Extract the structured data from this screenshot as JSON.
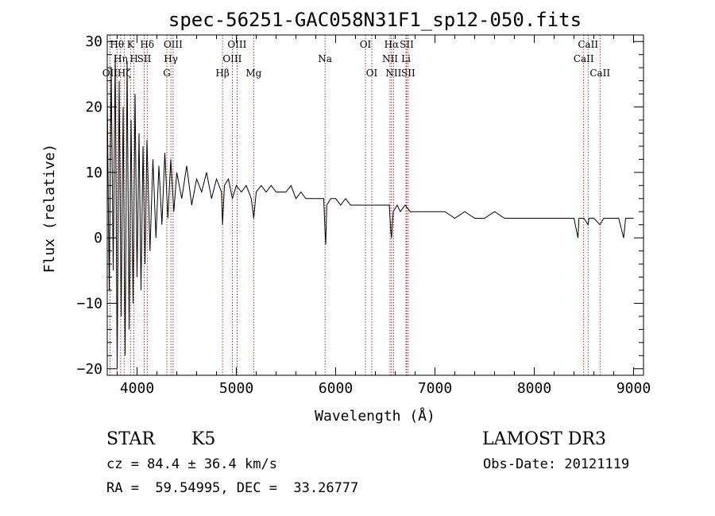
{
  "chart_data": {
    "type": "line",
    "title": "spec-56251-GAC058N31F1_sp12-050.fits",
    "xlabel": "Wavelength (Å)",
    "ylabel": "Flux (relative)",
    "xlim": [
      3700,
      9100
    ],
    "ylim": [
      -21,
      31
    ],
    "xticks": [
      4000,
      5000,
      6000,
      7000,
      8000,
      9000
    ],
    "yticks": [
      -20,
      -10,
      0,
      10,
      20,
      30
    ],
    "xtick_labels": [
      "4000",
      "5000",
      "6000",
      "7000",
      "8000",
      "9000"
    ],
    "ytick_labels": [
      "−20",
      "−10",
      "0",
      "10",
      "20",
      "30"
    ],
    "line_color": "#000000",
    "marker_color": "#8b0000",
    "series": [
      {
        "name": "flux",
        "x": [
          3700,
          3720,
          3740,
          3760,
          3780,
          3800,
          3820,
          3840,
          3860,
          3880,
          3900,
          3920,
          3940,
          3960,
          3980,
          4000,
          4020,
          4040,
          4060,
          4080,
          4100,
          4130,
          4160,
          4190,
          4220,
          4250,
          4280,
          4310,
          4340,
          4370,
          4400,
          4450,
          4500,
          4550,
          4600,
          4650,
          4700,
          4750,
          4800,
          4850,
          4861,
          4880,
          4920,
          4960,
          5000,
          5050,
          5100,
          5150,
          5175,
          5200,
          5250,
          5300,
          5350,
          5400,
          5450,
          5500,
          5550,
          5600,
          5650,
          5700,
          5750,
          5800,
          5850,
          5880,
          5893,
          5900,
          5910,
          5950,
          6000,
          6050,
          6100,
          6150,
          6200,
          6250,
          6300,
          6350,
          6400,
          6450,
          6500,
          6540,
          6555,
          6563,
          6570,
          6580,
          6620,
          6650,
          6700,
          6750,
          6800,
          6850,
          6900,
          6950,
          7000,
          7100,
          7200,
          7300,
          7400,
          7500,
          7600,
          7700,
          7800,
          7900,
          8000,
          8100,
          8200,
          8300,
          8400,
          8440,
          8450,
          8460,
          8500,
          8542,
          8550,
          8600,
          8662,
          8700,
          8750,
          8800,
          8850,
          8900,
          8920,
          8940,
          8960,
          8980,
          9000
        ],
        "y": [
          22,
          -8,
          26,
          -5,
          28,
          -20,
          24,
          -12,
          20,
          -18,
          27,
          -14,
          18,
          -10,
          22,
          -6,
          16,
          -8,
          14,
          -4,
          15,
          -2,
          12,
          0,
          11,
          2,
          13,
          3,
          12,
          4,
          10,
          6,
          11,
          5,
          9,
          7,
          10,
          6,
          9,
          7,
          2,
          8,
          9,
          6,
          8,
          7,
          8,
          6,
          3,
          7,
          8,
          7,
          8,
          7,
          7,
          7,
          8,
          6,
          7,
          6,
          6,
          6,
          6,
          6,
          1,
          -1,
          5,
          6,
          6,
          5,
          6,
          5,
          5,
          5,
          5,
          5,
          5,
          5,
          5,
          5,
          1,
          0,
          2,
          4,
          5,
          4,
          5,
          4,
          4,
          4,
          4,
          4,
          4,
          4,
          3,
          4,
          3,
          3,
          4,
          3,
          3,
          3,
          3,
          3,
          3,
          3,
          3,
          0,
          3,
          3,
          3,
          2,
          3,
          3,
          2,
          3,
          3,
          3,
          3,
          0,
          3,
          3,
          3,
          3,
          3
        ]
      }
    ],
    "lines": [
      {
        "wavelength": 3727,
        "label": "OII",
        "row": 3
      },
      {
        "wavelength": 3798,
        "label": "Hθ",
        "row": 1
      },
      {
        "wavelength": 3835,
        "label": "Hη",
        "row": 2
      },
      {
        "wavelength": 3870,
        "label": "Hζ",
        "row": 3
      },
      {
        "wavelength": 3934,
        "label": "K",
        "row": 1
      },
      {
        "wavelength": 3969,
        "label": "H",
        "row": 2
      },
      {
        "wavelength": 4072,
        "label": "SII",
        "row": 2
      },
      {
        "wavelength": 4102,
        "label": "Hδ",
        "row": 1
      },
      {
        "wavelength": 4300,
        "label": "G",
        "row": 3
      },
      {
        "wavelength": 4341,
        "label": "Hγ",
        "row": 2
      },
      {
        "wavelength": 4363,
        "label": "OIII",
        "row": 1
      },
      {
        "wavelength": 4861,
        "label": "Hβ",
        "row": 3
      },
      {
        "wavelength": 4959,
        "label": "OIII",
        "row": 2
      },
      {
        "wavelength": 5007,
        "label": "OIII",
        "row": 1
      },
      {
        "wavelength": 5175,
        "label": "Mg",
        "row": 3
      },
      {
        "wavelength": 5893,
        "label": "Na",
        "row": 2
      },
      {
        "wavelength": 6300,
        "label": "OI",
        "row": 1
      },
      {
        "wavelength": 6364,
        "label": "OI",
        "row": 3
      },
      {
        "wavelength": 6548,
        "label": "NII",
        "row": 2
      },
      {
        "wavelength": 6563,
        "label": "Hα",
        "row": 1
      },
      {
        "wavelength": 6583,
        "label": "NII",
        "row": 3
      },
      {
        "wavelength": 6708,
        "label": "Li",
        "row": 2
      },
      {
        "wavelength": 6716,
        "label": "SII",
        "row": 1
      },
      {
        "wavelength": 6731,
        "label": "SII",
        "row": 3
      },
      {
        "wavelength": 8498,
        "label": "CaII",
        "row": 2
      },
      {
        "wavelength": 8542,
        "label": "CaII",
        "row": 1
      },
      {
        "wavelength": 8662,
        "label": "CaII",
        "row": 3
      }
    ]
  },
  "info": {
    "class_label": "STAR",
    "subclass_label": "K5",
    "survey": "LAMOST DR3",
    "cz": "cz = 84.4 ± 36.4 km/s",
    "obs_date": "Obs-Date: 20121119",
    "coords": "RA =  59.54995, DEC =  33.26777"
  }
}
